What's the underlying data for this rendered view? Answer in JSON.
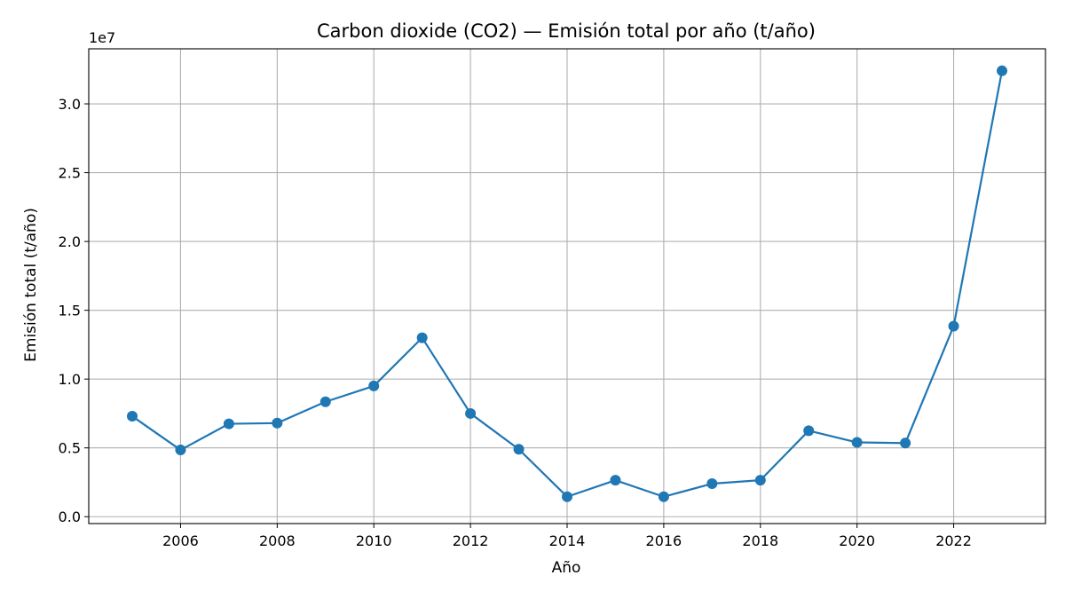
{
  "chart_data": {
    "type": "line",
    "title": "Carbon dioxide (CO2) — Emisión total por año (t/año)",
    "xlabel": "Año",
    "ylabel": "Emisión total (t/año)",
    "y_offset_label": "1e7",
    "x": [
      2005,
      2006,
      2007,
      2008,
      2009,
      2010,
      2011,
      2012,
      2013,
      2014,
      2015,
      2016,
      2017,
      2018,
      2019,
      2020,
      2021,
      2022,
      2023
    ],
    "series": [
      {
        "values": [
          7300000,
          4850000,
          6750000,
          6800000,
          8350000,
          9500000,
          13000000,
          7500000,
          4900000,
          1450000,
          2650000,
          1450000,
          2400000,
          2650000,
          6250000,
          5400000,
          5350000,
          13850000,
          32400000
        ],
        "color": "#1f77b4"
      }
    ],
    "x_ticks": [
      "2006",
      "2008",
      "2010",
      "2012",
      "2014",
      "2016",
      "2018",
      "2020",
      "2022"
    ],
    "y_ticks": [
      "0.0",
      "0.5",
      "1.0",
      "1.5",
      "2.0",
      "2.5",
      "3.0"
    ],
    "y_tick_values": [
      0,
      5000000,
      10000000,
      15000000,
      20000000,
      25000000,
      30000000
    ],
    "xlim": [
      2004.1,
      2023.9
    ],
    "ylim": [
      -500000,
      34000000
    ],
    "grid": true
  }
}
